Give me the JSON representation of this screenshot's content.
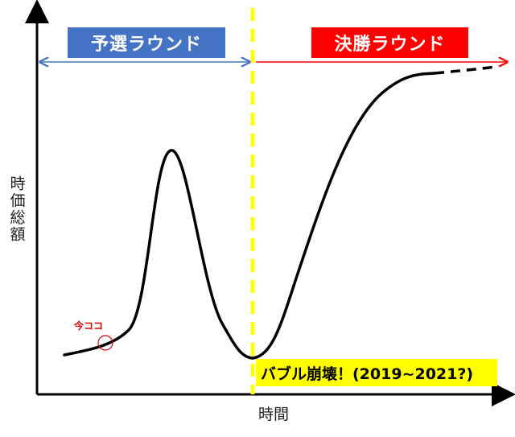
{
  "rounds": {
    "qualifying": "予選ラウンド",
    "final": "決勝ラウンド"
  },
  "annotations": {
    "now": "今ココ",
    "bubble_collapse": "バブル崩壊！(2019~2021?)"
  },
  "axes": {
    "y_label": "時価総額",
    "x_label": "時間"
  },
  "colors": {
    "qualifying_box": "#4472C4",
    "final_box": "#FF0000",
    "divider": "#FFFF00",
    "bubble_box": "#FFFF00",
    "now_marker": "#E00000"
  }
}
